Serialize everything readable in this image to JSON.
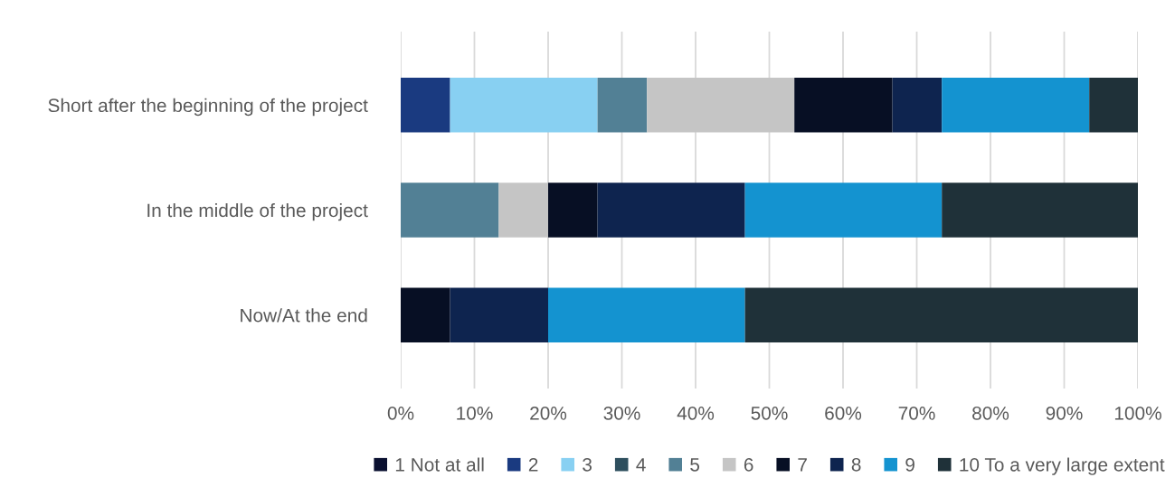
{
  "chart_data": {
    "type": "bar",
    "orientation": "horizontal",
    "stacked": true,
    "categories": [
      "Short after the beginning of the project",
      "In the middle of the project",
      "Now/At the end"
    ],
    "series": [
      {
        "name": "1 Not at all",
        "color": "#0a1030",
        "values": [
          null,
          null,
          null
        ]
      },
      {
        "name": "2",
        "color": "#1a3a80",
        "values": [
          6.7,
          null,
          null
        ]
      },
      {
        "name": "3",
        "color": "#88d0f2",
        "values": [
          20,
          null,
          null
        ]
      },
      {
        "name": "4",
        "color": "#2e4f5e",
        "values": [
          null,
          null,
          null
        ]
      },
      {
        "name": "5",
        "color": "#528095",
        "values": [
          6.7,
          13.3,
          null
        ]
      },
      {
        "name": "6",
        "color": "#c5c5c5",
        "values": [
          20,
          6.7,
          null
        ]
      },
      {
        "name": "7",
        "color": "#070f24",
        "values": [
          13.3,
          6.7,
          6.7
        ]
      },
      {
        "name": "8",
        "color": "#0e244f",
        "values": [
          6.7,
          20,
          13.3
        ]
      },
      {
        "name": "9",
        "color": "#1493d0",
        "values": [
          20,
          26.7,
          26.7
        ]
      },
      {
        "name": "10 To a very large extent",
        "color": "#1f3139",
        "values": [
          6.7,
          26.6,
          53.3
        ]
      }
    ],
    "xlim": [
      0,
      100
    ],
    "xticks": [
      {
        "value": 0,
        "label": "0%"
      },
      {
        "value": 10,
        "label": "10%"
      },
      {
        "value": 20,
        "label": "20%"
      },
      {
        "value": 30,
        "label": "30%"
      },
      {
        "value": 40,
        "label": "40%"
      },
      {
        "value": 50,
        "label": "50%"
      },
      {
        "value": 60,
        "label": "60%"
      },
      {
        "value": 70,
        "label": "70%"
      },
      {
        "value": 80,
        "label": "80%"
      },
      {
        "value": 90,
        "label": "90%"
      },
      {
        "value": 100,
        "label": "100%"
      }
    ],
    "grid": "x",
    "legend": "bottom"
  }
}
